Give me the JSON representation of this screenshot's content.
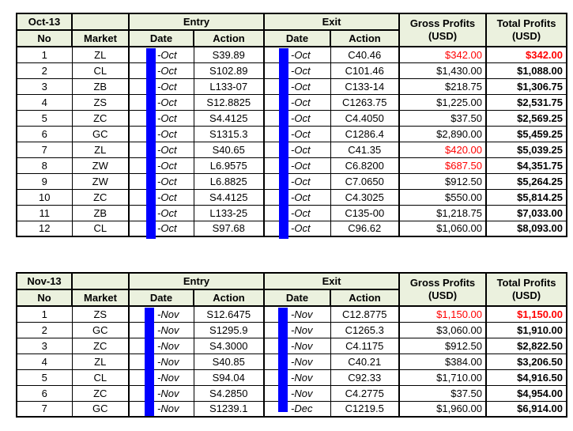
{
  "colors": {
    "header_bg": "#EBF1DE",
    "loss_red": "#FF0000",
    "redaction_blue": "#0000FF",
    "grid_black": "#000000"
  },
  "tables": [
    {
      "month_label": "Oct-13",
      "headers": {
        "no": "No",
        "market": "Market",
        "entry": "Entry",
        "exit": "Exit",
        "entry_date": "Date",
        "entry_action": "Action",
        "exit_date": "Date",
        "exit_action": "Action",
        "gross_line1": "Gross Profits",
        "gross_line2": "(USD)",
        "total_line1": "Total Profits",
        "total_line2": "(USD)"
      },
      "rows": [
        {
          "no": "1",
          "market": "ZL",
          "entry_date": "-Oct",
          "entry_action": "S39.89",
          "exit_date": "-Oct",
          "exit_action": "C40.46",
          "gross": "$342.00",
          "gross_loss": true,
          "total": "$342.00",
          "total_loss": true
        },
        {
          "no": "2",
          "market": "CL",
          "entry_date": "-Oct",
          "entry_action": "S102.89",
          "exit_date": "-Oct",
          "exit_action": "C101.46",
          "gross": "$1,430.00",
          "gross_loss": false,
          "total": "$1,088.00",
          "total_loss": false
        },
        {
          "no": "3",
          "market": "ZB",
          "entry_date": "-Oct",
          "entry_action": "L133-07",
          "exit_date": "-Oct",
          "exit_action": "C133-14",
          "gross": "$218.75",
          "gross_loss": false,
          "total": "$1,306.75",
          "total_loss": false
        },
        {
          "no": "4",
          "market": "ZS",
          "entry_date": "-Oct",
          "entry_action": "S12.8825",
          "exit_date": "-Oct",
          "exit_action": "C1263.75",
          "gross": "$1,225.00",
          "gross_loss": false,
          "total": "$2,531.75",
          "total_loss": false
        },
        {
          "no": "5",
          "market": "ZC",
          "entry_date": "-Oct",
          "entry_action": "S4.4125",
          "exit_date": "-Oct",
          "exit_action": "C4.4050",
          "gross": "$37.50",
          "gross_loss": false,
          "total": "$2,569.25",
          "total_loss": false
        },
        {
          "no": "6",
          "market": "GC",
          "entry_date": "-Oct",
          "entry_action": "S1315.3",
          "exit_date": "-Oct",
          "exit_action": "C1286.4",
          "gross": "$2,890.00",
          "gross_loss": false,
          "total": "$5,459.25",
          "total_loss": false
        },
        {
          "no": "7",
          "market": "ZL",
          "entry_date": "-Oct",
          "entry_action": "S40.65",
          "exit_date": "-Oct",
          "exit_action": "C41.35",
          "gross": "$420.00",
          "gross_loss": true,
          "total": "$5,039.25",
          "total_loss": false
        },
        {
          "no": "8",
          "market": "ZW",
          "entry_date": "-Oct",
          "entry_action": "L6.9575",
          "exit_date": "-Oct",
          "exit_action": "C6.8200",
          "gross": "$687.50",
          "gross_loss": true,
          "total": "$4,351.75",
          "total_loss": false
        },
        {
          "no": "9",
          "market": "ZW",
          "entry_date": "-Oct",
          "entry_action": "L6.8825",
          "exit_date": "-Oct",
          "exit_action": "C7.0650",
          "gross": "$912.50",
          "gross_loss": false,
          "total": "$5,264.25",
          "total_loss": false
        },
        {
          "no": "10",
          "market": "ZC",
          "entry_date": "-Oct",
          "entry_action": "S4.4125",
          "exit_date": "-Oct",
          "exit_action": "C4.3025",
          "gross": "$550.00",
          "gross_loss": false,
          "total": "$5,814.25",
          "total_loss": false
        },
        {
          "no": "11",
          "market": "ZB",
          "entry_date": "-Oct",
          "entry_action": "L133-25",
          "exit_date": "-Oct",
          "exit_action": "C135-00",
          "gross": "$1,218.75",
          "gross_loss": false,
          "total": "$7,033.00",
          "total_loss": false
        },
        {
          "no": "12",
          "market": "CL",
          "entry_date": "-Oct",
          "entry_action": "S97.68",
          "exit_date": "-Oct",
          "exit_action": "C96.62",
          "gross": "$1,060.00",
          "gross_loss": false,
          "total": "$8,093.00",
          "total_loss": false
        }
      ]
    },
    {
      "month_label": "Nov-13",
      "headers": {
        "no": "No",
        "market": "Market",
        "entry": "Entry",
        "exit": "Exit",
        "entry_date": "Date",
        "entry_action": "Action",
        "exit_date": "Date",
        "exit_action": "Action",
        "gross_line1": "Gross Profits",
        "gross_line2": "(USD)",
        "total_line1": "Total Profits",
        "total_line2": "(USD)"
      },
      "rows": [
        {
          "no": "1",
          "market": "ZS",
          "entry_date": "-Nov",
          "entry_action": "S12.6475",
          "exit_date": "-Nov",
          "exit_action": "C12.8775",
          "gross": "$1,150.00",
          "gross_loss": true,
          "total": "$1,150.00",
          "total_loss": true
        },
        {
          "no": "2",
          "market": "GC",
          "entry_date": "-Nov",
          "entry_action": "S1295.9",
          "exit_date": "-Nov",
          "exit_action": "C1265.3",
          "gross": "$3,060.00",
          "gross_loss": false,
          "total": "$1,910.00",
          "total_loss": false
        },
        {
          "no": "3",
          "market": "ZC",
          "entry_date": "-Nov",
          "entry_action": "S4.3000",
          "exit_date": "-Nov",
          "exit_action": "C4.1175",
          "gross": "$912.50",
          "gross_loss": false,
          "total": "$2,822.50",
          "total_loss": false
        },
        {
          "no": "4",
          "market": "ZL",
          "entry_date": "-Nov",
          "entry_action": "S40.85",
          "exit_date": "-Nov",
          "exit_action": "C40.21",
          "gross": "$384.00",
          "gross_loss": false,
          "total": "$3,206.50",
          "total_loss": false
        },
        {
          "no": "5",
          "market": "CL",
          "entry_date": "-Nov",
          "entry_action": "S94.04",
          "exit_date": "-Nov",
          "exit_action": "C92.33",
          "gross": "$1,710.00",
          "gross_loss": false,
          "total": "$4,916.50",
          "total_loss": false
        },
        {
          "no": "6",
          "market": "ZC",
          "entry_date": "-Nov",
          "entry_action": "S4.2850",
          "exit_date": "-Nov",
          "exit_action": "C4.2775",
          "gross": "$37.50",
          "gross_loss": false,
          "total": "$4,954.00",
          "total_loss": false
        },
        {
          "no": "7",
          "market": "GC",
          "entry_date": "-Nov",
          "entry_action": "S1239.1",
          "exit_date": "-Dec",
          "exit_action": "C1219.5",
          "gross": "$1,960.00",
          "gross_loss": false,
          "total": "$6,914.00",
          "total_loss": false
        }
      ]
    }
  ]
}
